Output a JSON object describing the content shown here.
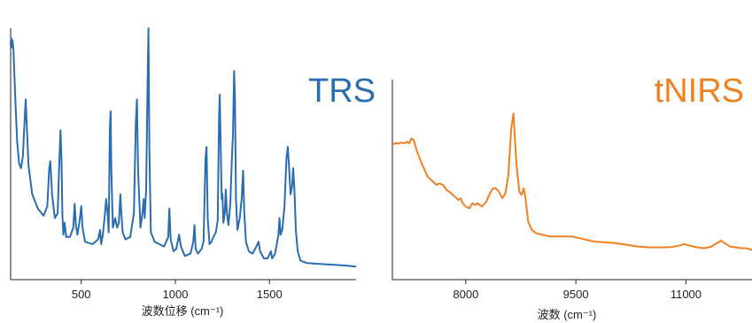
{
  "chart_data": [
    {
      "type": "line",
      "title": "TRS",
      "xlabel": "波数位移 (cm⁻¹)",
      "ylabel": "",
      "color": "#2a6db0",
      "xlim": [
        125,
        1960
      ],
      "ylim": [
        0,
        1
      ],
      "x_ticks": [
        "500",
        "1000",
        "1500"
      ],
      "x_tick_values": [
        500,
        1000,
        1500
      ],
      "grid": false,
      "series": [
        {
          "points": [
            [
              125,
              0.93
            ],
            [
              128,
              0.96
            ],
            [
              131,
              0.92
            ],
            [
              135,
              0.95
            ],
            [
              140,
              0.91
            ],
            [
              150,
              0.7
            ],
            [
              160,
              0.52
            ],
            [
              170,
              0.43
            ],
            [
              180,
              0.41
            ],
            [
              190,
              0.46
            ],
            [
              200,
              0.62
            ],
            [
              205,
              0.7
            ],
            [
              210,
              0.6
            ],
            [
              220,
              0.42
            ],
            [
              240,
              0.3
            ],
            [
              270,
              0.24
            ],
            [
              300,
              0.21
            ],
            [
              320,
              0.25
            ],
            [
              330,
              0.41
            ],
            [
              336,
              0.44
            ],
            [
              345,
              0.3
            ],
            [
              360,
              0.2
            ],
            [
              375,
              0.22
            ],
            [
              383,
              0.42
            ],
            [
              390,
              0.57
            ],
            [
              395,
              0.45
            ],
            [
              400,
              0.22
            ],
            [
              405,
              0.13
            ],
            [
              412,
              0.18
            ],
            [
              420,
              0.12
            ],
            [
              440,
              0.12
            ],
            [
              458,
              0.16
            ],
            [
              465,
              0.26
            ],
            [
              472,
              0.17
            ],
            [
              480,
              0.13
            ],
            [
              492,
              0.19
            ],
            [
              500,
              0.25
            ],
            [
              507,
              0.16
            ],
            [
              520,
              0.1
            ],
            [
              560,
              0.09
            ],
            [
              590,
              0.11
            ],
            [
              600,
              0.15
            ],
            [
              606,
              0.09
            ],
            [
              615,
              0.13
            ],
            [
              625,
              0.21
            ],
            [
              632,
              0.28
            ],
            [
              640,
              0.22
            ],
            [
              646,
              0.14
            ],
            [
              652,
              0.57
            ],
            [
              656,
              0.65
            ],
            [
              660,
              0.4
            ],
            [
              668,
              0.16
            ],
            [
              680,
              0.2
            ],
            [
              690,
              0.16
            ],
            [
              700,
              0.18
            ],
            [
              708,
              0.3
            ],
            [
              713,
              0.22
            ],
            [
              720,
              0.14
            ],
            [
              735,
              0.11
            ],
            [
              760,
              0.12
            ],
            [
              780,
              0.22
            ],
            [
              790,
              0.6
            ],
            [
              796,
              0.7
            ],
            [
              802,
              0.4
            ],
            [
              815,
              0.16
            ],
            [
              825,
              0.22
            ],
            [
              832,
              0.28
            ],
            [
              837,
              0.2
            ],
            [
              845,
              0.32
            ],
            [
              852,
              0.74
            ],
            [
              857,
              1.0
            ],
            [
              862,
              0.5
            ],
            [
              870,
              0.14
            ],
            [
              890,
              0.1
            ],
            [
              940,
              0.08
            ],
            [
              962,
              0.12
            ],
            [
              968,
              0.24
            ],
            [
              975,
              0.11
            ],
            [
              990,
              0.06
            ],
            [
              1005,
              0.07
            ],
            [
              1020,
              0.13
            ],
            [
              1030,
              0.08
            ],
            [
              1050,
              0.04
            ],
            [
              1080,
              0.05
            ],
            [
              1095,
              0.1
            ],
            [
              1102,
              0.17
            ],
            [
              1108,
              0.07
            ],
            [
              1120,
              0.05
            ],
            [
              1140,
              0.07
            ],
            [
              1150,
              0.1
            ],
            [
              1160,
              0.45
            ],
            [
              1166,
              0.5
            ],
            [
              1172,
              0.2
            ],
            [
              1182,
              0.09
            ],
            [
              1192,
              0.1
            ],
            [
              1202,
              0.12
            ],
            [
              1215,
              0.14
            ],
            [
              1225,
              0.19
            ],
            [
              1232,
              0.62
            ],
            [
              1236,
              0.72
            ],
            [
              1241,
              0.5
            ],
            [
              1246,
              0.28
            ],
            [
              1250,
              0.3
            ],
            [
              1255,
              0.18
            ],
            [
              1262,
              0.22
            ],
            [
              1268,
              0.32
            ],
            [
              1274,
              0.22
            ],
            [
              1282,
              0.17
            ],
            [
              1292,
              0.26
            ],
            [
              1300,
              0.44
            ],
            [
              1306,
              0.55
            ],
            [
              1312,
              0.82
            ],
            [
              1317,
              0.7
            ],
            [
              1322,
              0.28
            ],
            [
              1330,
              0.15
            ],
            [
              1342,
              0.2
            ],
            [
              1352,
              0.28
            ],
            [
              1360,
              0.4
            ],
            [
              1366,
              0.22
            ],
            [
              1375,
              0.1
            ],
            [
              1390,
              0.06
            ],
            [
              1410,
              0.05
            ],
            [
              1430,
              0.08
            ],
            [
              1442,
              0.1
            ],
            [
              1450,
              0.06
            ],
            [
              1470,
              0.03
            ],
            [
              1490,
              0.03
            ],
            [
              1508,
              0.06
            ],
            [
              1514,
              0.03
            ],
            [
              1530,
              0.05
            ],
            [
              1548,
              0.13
            ],
            [
              1553,
              0.2
            ],
            [
              1559,
              0.13
            ],
            [
              1568,
              0.15
            ],
            [
              1580,
              0.25
            ],
            [
              1590,
              0.45
            ],
            [
              1597,
              0.5
            ],
            [
              1604,
              0.42
            ],
            [
              1612,
              0.3
            ],
            [
              1620,
              0.33
            ],
            [
              1626,
              0.41
            ],
            [
              1632,
              0.33
            ],
            [
              1640,
              0.15
            ],
            [
              1650,
              0.06
            ],
            [
              1665,
              0.02
            ],
            [
              1700,
              0.01
            ],
            [
              1800,
              0.005
            ],
            [
              1900,
              0.0
            ],
            [
              1960,
              -0.005
            ]
          ]
        }
      ]
    },
    {
      "type": "line",
      "title": "tNIRS",
      "xlabel": "波数 (cm⁻¹)",
      "ylabel": "",
      "color": "#ef8122",
      "xlim": [
        7000,
        11900
      ],
      "ylim": [
        0,
        1
      ],
      "x_ticks": [
        "8000",
        "9500",
        "11000"
      ],
      "x_tick_values": [
        8000,
        9500,
        11000
      ],
      "grid": false,
      "series": [
        {
          "points": [
            [
              7000,
              0.66
            ],
            [
              7030,
              0.67
            ],
            [
              7080,
              0.67
            ],
            [
              7120,
              0.675
            ],
            [
              7160,
              0.67
            ],
            [
              7200,
              0.68
            ],
            [
              7230,
              0.67
            ],
            [
              7260,
              0.7
            ],
            [
              7290,
              0.69
            ],
            [
              7330,
              0.63
            ],
            [
              7380,
              0.57
            ],
            [
              7430,
              0.52
            ],
            [
              7480,
              0.47
            ],
            [
              7530,
              0.45
            ],
            [
              7600,
              0.42
            ],
            [
              7640,
              0.43
            ],
            [
              7690,
              0.42
            ],
            [
              7740,
              0.39
            ],
            [
              7800,
              0.37
            ],
            [
              7850,
              0.35
            ],
            [
              7900,
              0.33
            ],
            [
              7930,
              0.34
            ],
            [
              7960,
              0.31
            ],
            [
              8000,
              0.29
            ],
            [
              8050,
              0.28
            ],
            [
              8090,
              0.31
            ],
            [
              8130,
              0.3
            ],
            [
              8160,
              0.31
            ],
            [
              8220,
              0.29
            ],
            [
              8280,
              0.32
            ],
            [
              8330,
              0.37
            ],
            [
              8370,
              0.4
            ],
            [
              8410,
              0.4
            ],
            [
              8450,
              0.38
            ],
            [
              8500,
              0.34
            ],
            [
              8540,
              0.37
            ],
            [
              8580,
              0.48
            ],
            [
              8620,
              0.76
            ],
            [
              8650,
              0.85
            ],
            [
              8690,
              0.55
            ],
            [
              8730,
              0.38
            ],
            [
              8760,
              0.36
            ],
            [
              8790,
              0.4
            ],
            [
              8810,
              0.35
            ],
            [
              8850,
              0.2
            ],
            [
              8900,
              0.15
            ],
            [
              8960,
              0.13
            ],
            [
              9050,
              0.12
            ],
            [
              9150,
              0.11
            ],
            [
              9300,
              0.11
            ],
            [
              9450,
              0.11
            ],
            [
              9550,
              0.1
            ],
            [
              9650,
              0.09
            ],
            [
              9750,
              0.08
            ],
            [
              9900,
              0.075
            ],
            [
              10050,
              0.07
            ],
            [
              10200,
              0.06
            ],
            [
              10350,
              0.05
            ],
            [
              10500,
              0.045
            ],
            [
              10650,
              0.045
            ],
            [
              10800,
              0.047
            ],
            [
              10900,
              0.055
            ],
            [
              10980,
              0.065
            ],
            [
              11050,
              0.055
            ],
            [
              11150,
              0.045
            ],
            [
              11250,
              0.04
            ],
            [
              11350,
              0.05
            ],
            [
              11420,
              0.07
            ],
            [
              11480,
              0.085
            ],
            [
              11530,
              0.07
            ],
            [
              11600,
              0.05
            ],
            [
              11680,
              0.045
            ],
            [
              11750,
              0.04
            ],
            [
              11820,
              0.04
            ],
            [
              11900,
              0.03
            ]
          ]
        }
      ]
    }
  ]
}
